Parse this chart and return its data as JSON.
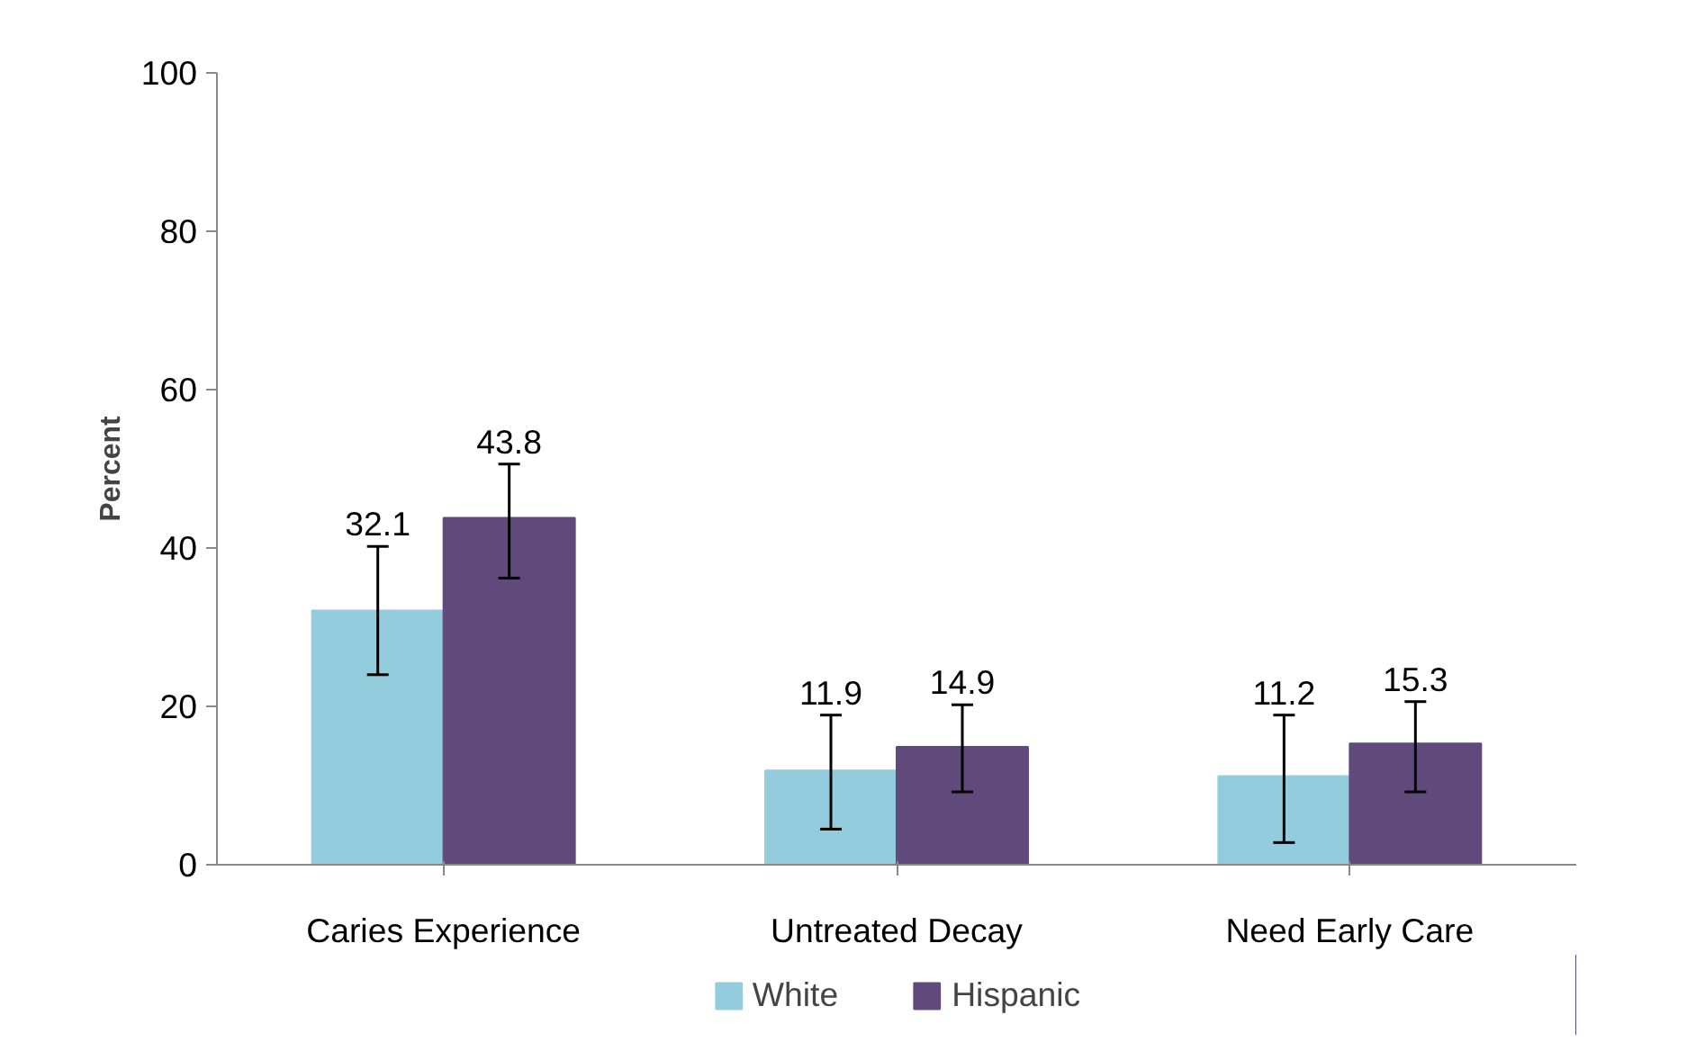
{
  "chart_data": {
    "type": "bar",
    "ylabel": "Percent",
    "categories": [
      "Caries Experience",
      "Untreated Decay",
      "Need Early Care"
    ],
    "series": [
      {
        "name": "White",
        "color": "#93cddd",
        "values": [
          32.1,
          11.9,
          11.2
        ],
        "errors": [
          [
            24.0,
            40.2
          ],
          [
            4.5,
            18.9
          ],
          [
            2.8,
            18.9
          ]
        ]
      },
      {
        "name": "Hispanic",
        "color": "#604a7b",
        "values": [
          43.8,
          14.9,
          15.3
        ],
        "errors": [
          [
            36.2,
            50.6
          ],
          [
            9.2,
            20.2
          ],
          [
            9.2,
            20.6
          ]
        ]
      }
    ],
    "ylim": [
      0,
      100
    ],
    "yticks": [
      0,
      20,
      40,
      60,
      80,
      100
    ],
    "data_labels": true,
    "grid": false,
    "legend": "bottom"
  }
}
